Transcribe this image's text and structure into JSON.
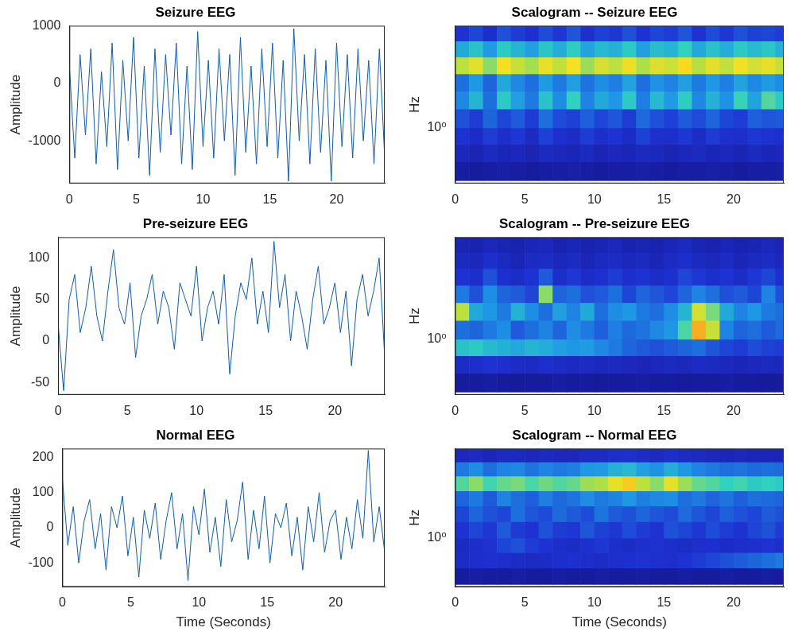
{
  "chart_data": [
    {
      "type": "line",
      "title": "Seizure EEG",
      "ylabel": "Amplitude",
      "color": "#0e5ea8",
      "grid": false,
      "xlim": [
        0,
        23.6
      ],
      "xticks": [
        0,
        5,
        10,
        15,
        20
      ],
      "ylim": [
        -1740,
        1000
      ],
      "yticks": [
        -1000,
        0,
        1000
      ],
      "x": [
        0,
        0.4,
        0.8,
        1.2,
        1.6,
        2,
        2.4,
        2.8,
        3.2,
        3.6,
        4,
        4.4,
        4.8,
        5.2,
        5.6,
        6,
        6.4,
        6.8,
        7.2,
        7.6,
        8,
        8.4,
        8.8,
        9.2,
        9.6,
        10,
        10.4,
        10.8,
        11.2,
        11.6,
        12,
        12.4,
        12.8,
        13.2,
        13.6,
        14,
        14.4,
        14.8,
        15.2,
        15.6,
        16,
        16.4,
        16.8,
        17.2,
        17.6,
        18,
        18.4,
        18.8,
        19.2,
        19.6,
        20,
        20.4,
        20.8,
        21.2,
        21.6,
        22,
        22.4,
        22.8,
        23.2,
        23.6
      ],
      "values": [
        300,
        -1300,
        500,
        -900,
        600,
        -1400,
        200,
        -1100,
        700,
        -1500,
        400,
        -1000,
        800,
        -1300,
        300,
        -1600,
        600,
        -1200,
        500,
        -900,
        700,
        -1400,
        300,
        -1500,
        900,
        -1100,
        400,
        -1300,
        600,
        -1000,
        500,
        -1600,
        800,
        -1200,
        300,
        -1400,
        600,
        -1100,
        700,
        -1300,
        400,
        -1700,
        950,
        -1000,
        500,
        -1400,
        600,
        -1200,
        400,
        -1700,
        700,
        -1100,
        500,
        -1300,
        600,
        -1000,
        400,
        -1400,
        600,
        -1300
      ]
    },
    {
      "type": "heatmap",
      "title": "Scalogram -- Seizure EEG",
      "ylabel": "Hz",
      "log": "y",
      "grid": false,
      "xlim": [
        0,
        23.6
      ],
      "xticks": [
        0,
        5,
        10,
        15,
        20
      ],
      "ylim": [
        0.32,
        9
      ],
      "yticks": [
        {
          "value": 1,
          "label": "10⁰"
        }
      ],
      "clim": [
        0,
        9
      ],
      "x_edges": [
        0,
        1,
        2,
        3,
        4,
        5,
        6,
        7,
        8,
        9,
        10,
        11,
        12,
        13,
        14,
        15,
        16,
        17,
        18,
        19,
        20,
        21,
        22,
        23,
        23.6
      ],
      "y_edges": [
        0.32,
        0.48,
        0.7,
        1.0,
        1.5,
        2.2,
        3.2,
        4.6,
        6.5,
        9
      ],
      "cells": [
        [
          0.6,
          0.5,
          0.6,
          0.7,
          0.6,
          0.5,
          0.6,
          0.6,
          0.7,
          0.6,
          0.5,
          0.6,
          0.6,
          0.7,
          0.6,
          0.5,
          0.6,
          0.6,
          0.7,
          0.6,
          0.5,
          0.6,
          0.6,
          0.7
        ],
        [
          1.2,
          1.0,
          1.3,
          1.1,
          1.2,
          1.0,
          1.3,
          1.2,
          1.1,
          1.3,
          1.0,
          1.2,
          1.1,
          1.3,
          1.2,
          1.0,
          1.2,
          1.3,
          1.1,
          1.2,
          1.0,
          1.3,
          1.1,
          1.2
        ],
        [
          1.8,
          1.5,
          2.0,
          1.6,
          1.9,
          1.4,
          2.1,
          1.7,
          1.5,
          2.0,
          1.6,
          1.8,
          1.5,
          2.1,
          1.7,
          1.6,
          1.9,
          1.5,
          2.0,
          1.7,
          1.6,
          1.9,
          1.8,
          1.7
        ],
        [
          2.4,
          2.0,
          2.8,
          2.2,
          2.6,
          2.0,
          3.0,
          2.3,
          2.1,
          2.7,
          2.2,
          2.5,
          2.0,
          2.9,
          2.4,
          2.1,
          2.6,
          2.3,
          2.8,
          2.2,
          2.0,
          2.7,
          2.5,
          2.6
        ],
        [
          3.5,
          4.5,
          3.0,
          5.0,
          4.0,
          3.2,
          4.8,
          3.6,
          5.2,
          3.4,
          4.2,
          3.8,
          5.0,
          3.3,
          4.6,
          3.9,
          5.1,
          3.5,
          4.4,
          3.7,
          5.3,
          4.1,
          5.6,
          5.0
        ],
        [
          3.0,
          3.8,
          2.8,
          4.2,
          3.5,
          3.0,
          3.9,
          3.2,
          4.0,
          3.1,
          3.6,
          3.3,
          4.1,
          3.0,
          3.7,
          3.4,
          4.0,
          3.2,
          3.8,
          3.3,
          4.1,
          3.5,
          3.9,
          3.6
        ],
        [
          6.8,
          7.5,
          6.2,
          7.8,
          7.0,
          6.5,
          7.6,
          6.9,
          7.9,
          6.4,
          7.3,
          6.8,
          7.7,
          6.6,
          7.4,
          7.1,
          8.0,
          6.7,
          7.5,
          6.9,
          7.8,
          7.2,
          7.6,
          7.0
        ],
        [
          4.2,
          4.8,
          3.9,
          5.0,
          4.5,
          4.0,
          4.9,
          4.3,
          5.1,
          4.1,
          4.6,
          4.4,
          5.0,
          4.0,
          4.7,
          4.5,
          5.2,
          4.2,
          4.8,
          4.3,
          5.0,
          4.6,
          4.9,
          4.4
        ],
        [
          1.8,
          2.2,
          1.6,
          2.4,
          2.0,
          1.7,
          2.3,
          1.9,
          2.5,
          1.7,
          2.1,
          1.9,
          2.4,
          1.8,
          2.2,
          2.0,
          2.5,
          1.8,
          2.3,
          1.9,
          2.4,
          2.1,
          2.2,
          2.0
        ]
      ]
    },
    {
      "type": "line",
      "title": "Pre-seizure EEG",
      "ylabel": "Amplitude",
      "color": "#0e5ea8",
      "grid": false,
      "xlim": [
        0,
        23.6
      ],
      "xticks": [
        0,
        5,
        10,
        15,
        20
      ],
      "ylim": [
        -65,
        125
      ],
      "yticks": [
        -50,
        0,
        50,
        100
      ],
      "x": [
        0,
        0.4,
        0.8,
        1.2,
        1.6,
        2,
        2.4,
        2.8,
        3.2,
        3.6,
        4,
        4.4,
        4.8,
        5.2,
        5.6,
        6,
        6.4,
        6.8,
        7.2,
        7.6,
        8,
        8.4,
        8.8,
        9.2,
        9.6,
        10,
        10.4,
        10.8,
        11.2,
        11.6,
        12,
        12.4,
        12.8,
        13.2,
        13.6,
        14,
        14.4,
        14.8,
        15.2,
        15.6,
        16,
        16.4,
        16.8,
        17.2,
        17.6,
        18,
        18.4,
        18.8,
        19.2,
        19.6,
        20,
        20.4,
        20.8,
        21.2,
        21.6,
        22,
        22.4,
        22.8,
        23.2,
        23.6
      ],
      "values": [
        20,
        -60,
        50,
        80,
        10,
        40,
        90,
        30,
        0,
        60,
        110,
        40,
        20,
        70,
        -20,
        30,
        50,
        80,
        20,
        60,
        40,
        -10,
        70,
        50,
        30,
        90,
        0,
        40,
        60,
        20,
        80,
        -40,
        30,
        70,
        50,
        100,
        20,
        60,
        10,
        120,
        40,
        80,
        0,
        60,
        30,
        -10,
        50,
        90,
        20,
        40,
        70,
        10,
        60,
        -30,
        50,
        80,
        30,
        60,
        100,
        -20
      ]
    },
    {
      "type": "heatmap",
      "title": "Scalogram -- Pre-seizure EEG",
      "ylabel": "Hz",
      "log": "y",
      "grid": false,
      "xlim": [
        0,
        23.6
      ],
      "xticks": [
        0,
        5,
        10,
        15,
        20
      ],
      "ylim": [
        0.32,
        9
      ],
      "yticks": [
        {
          "value": 1,
          "label": "10⁰"
        }
      ],
      "clim": [
        0,
        9
      ],
      "x_edges": [
        0,
        1,
        2,
        3,
        4,
        5,
        6,
        7,
        8,
        9,
        10,
        11,
        12,
        13,
        14,
        15,
        16,
        17,
        18,
        19,
        20,
        21,
        22,
        23,
        23.6
      ],
      "y_edges": [
        0.32,
        0.48,
        0.7,
        1.0,
        1.5,
        2.2,
        3.2,
        4.6,
        6.5,
        9
      ],
      "cells": [
        [
          0.5,
          0.5,
          0.6,
          0.5,
          0.4,
          0.5,
          0.5,
          0.6,
          0.5,
          0.5,
          0.4,
          0.5,
          0.5,
          0.6,
          0.5,
          0.5,
          0.4,
          0.5,
          0.5,
          0.6,
          0.5,
          0.5,
          0.4,
          0.5
        ],
        [
          1.5,
          1.6,
          1.8,
          1.7,
          1.5,
          1.4,
          1.6,
          1.5,
          1.3,
          1.4,
          1.2,
          1.3,
          1.2,
          1.1,
          1.2,
          1.3,
          1.2,
          1.4,
          1.3,
          1.2,
          1.1,
          1.2,
          1.3,
          1.2
        ],
        [
          4.8,
          5.0,
          4.6,
          4.4,
          4.2,
          4.5,
          4.3,
          4.0,
          3.8,
          3.9,
          3.5,
          3.2,
          2.8,
          2.6,
          2.4,
          2.6,
          2.8,
          3.0,
          2.5,
          2.2,
          2.0,
          2.3,
          2.1,
          2.0
        ],
        [
          3.0,
          2.8,
          3.2,
          3.6,
          2.6,
          3.0,
          3.4,
          2.8,
          3.6,
          3.2,
          2.7,
          3.3,
          2.9,
          3.1,
          3.5,
          3.8,
          5.5,
          8.6,
          7.0,
          3.4,
          2.8,
          3.0,
          2.6,
          2.9
        ],
        [
          6.8,
          4.2,
          3.8,
          3.2,
          4.4,
          3.6,
          3.0,
          4.0,
          3.4,
          4.2,
          3.0,
          3.6,
          3.8,
          3.2,
          3.0,
          3.6,
          4.5,
          7.2,
          6.0,
          4.2,
          3.4,
          3.8,
          3.2,
          3.0
        ],
        [
          3.2,
          2.4,
          3.6,
          2.8,
          2.6,
          2.2,
          6.2,
          2.8,
          3.0,
          2.4,
          2.6,
          3.0,
          2.2,
          2.8,
          2.5,
          2.2,
          2.8,
          3.4,
          3.0,
          2.4,
          2.6,
          2.2,
          3.4,
          2.4
        ],
        [
          1.8,
          1.6,
          2.4,
          1.7,
          1.5,
          1.8,
          2.6,
          1.6,
          1.9,
          1.5,
          1.7,
          2.0,
          1.6,
          1.8,
          1.5,
          1.7,
          2.2,
          1.9,
          1.6,
          1.8,
          1.5,
          1.9,
          2.2,
          1.7
        ],
        [
          1.3,
          1.2,
          1.6,
          1.3,
          1.1,
          1.4,
          1.5,
          1.2,
          1.4,
          1.1,
          1.3,
          1.5,
          1.2,
          1.3,
          1.1,
          1.4,
          1.6,
          1.3,
          1.2,
          1.4,
          1.1,
          1.3,
          1.5,
          1.2
        ],
        [
          1.0,
          0.9,
          1.2,
          1.0,
          0.9,
          1.1,
          1.2,
          0.9,
          1.1,
          0.9,
          1.0,
          1.2,
          0.9,
          1.0,
          0.9,
          1.1,
          1.3,
          1.0,
          0.9,
          1.1,
          0.9,
          1.0,
          1.2,
          1.0
        ]
      ]
    },
    {
      "type": "line",
      "title": "Normal EEG",
      "ylabel": "Amplitude",
      "xlabel": "Time (Seconds)",
      "color": "#0e5ea8",
      "grid": false,
      "xlim": [
        0,
        23.6
      ],
      "xticks": [
        0,
        5,
        10,
        15,
        20
      ],
      "ylim": [
        -168,
        225
      ],
      "yticks": [
        -100,
        0,
        100,
        200
      ],
      "x": [
        0,
        0.4,
        0.8,
        1.2,
        1.6,
        2,
        2.4,
        2.8,
        3.2,
        3.6,
        4,
        4.4,
        4.8,
        5.2,
        5.6,
        6,
        6.4,
        6.8,
        7.2,
        7.6,
        8,
        8.4,
        8.8,
        9.2,
        9.6,
        10,
        10.4,
        10.8,
        11.2,
        11.6,
        12,
        12.4,
        12.8,
        13.2,
        13.6,
        14,
        14.4,
        14.8,
        15.2,
        15.6,
        16,
        16.4,
        16.8,
        17.2,
        17.6,
        18,
        18.4,
        18.8,
        19.2,
        19.6,
        20,
        20.4,
        20.8,
        21.2,
        21.6,
        22,
        22.4,
        22.8,
        23.2,
        23.6
      ],
      "values": [
        140,
        -50,
        60,
        -100,
        20,
        80,
        -60,
        40,
        -120,
        60,
        0,
        90,
        -80,
        30,
        -140,
        50,
        -30,
        70,
        -90,
        20,
        100,
        -60,
        40,
        -150,
        60,
        -20,
        110,
        -70,
        30,
        -110,
        80,
        -40,
        20,
        130,
        -90,
        50,
        -60,
        90,
        -100,
        40,
        0,
        70,
        -80,
        30,
        -120,
        60,
        -40,
        100,
        -70,
        20,
        50,
        -90,
        30,
        -60,
        80,
        -30,
        220,
        -40,
        60,
        -70
      ]
    },
    {
      "type": "heatmap",
      "title": "Scalogram -- Normal EEG",
      "ylabel": "Hz",
      "xlabel": "Time (Seconds)",
      "log": "y",
      "grid": false,
      "xlim": [
        0,
        23.6
      ],
      "xticks": [
        0,
        5,
        10,
        15,
        20
      ],
      "ylim": [
        0.32,
        9
      ],
      "yticks": [
        {
          "value": 1,
          "label": "10⁰"
        }
      ],
      "clim": [
        0,
        9
      ],
      "x_edges": [
        0,
        1,
        2,
        3,
        4,
        5,
        6,
        7,
        8,
        9,
        10,
        11,
        12,
        13,
        14,
        15,
        16,
        17,
        18,
        19,
        20,
        21,
        22,
        23,
        23.6
      ],
      "y_edges": [
        0.32,
        0.48,
        0.7,
        1.0,
        1.5,
        2.2,
        3.2,
        4.6,
        6.5,
        9
      ],
      "cells": [
        [
          0.5,
          0.6,
          0.5,
          0.5,
          0.6,
          0.5,
          0.5,
          0.6,
          0.5,
          0.5,
          0.6,
          0.5,
          0.5,
          0.6,
          0.5,
          0.5,
          0.6,
          0.5,
          0.5,
          0.6,
          0.5,
          0.5,
          0.6,
          0.5
        ],
        [
          1.5,
          1.6,
          1.7,
          1.6,
          1.5,
          1.4,
          1.5,
          1.6,
          1.7,
          1.6,
          1.5,
          1.6,
          1.7,
          1.8,
          1.7,
          1.6,
          1.8,
          2.0,
          2.2,
          2.4,
          2.6,
          2.8,
          3.0,
          3.2
        ],
        [
          1.4,
          1.6,
          1.8,
          2.2,
          2.4,
          2.0,
          1.8,
          1.6,
          1.5,
          1.7,
          1.9,
          1.6,
          1.5,
          1.7,
          1.8,
          1.6,
          1.5,
          1.6,
          1.7,
          1.5,
          1.6,
          1.7,
          1.8,
          1.6
        ],
        [
          1.8,
          2.2,
          1.9,
          2.6,
          2.0,
          1.8,
          2.4,
          2.0,
          1.9,
          2.5,
          2.1,
          1.9,
          2.3,
          2.0,
          1.8,
          2.4,
          2.2,
          1.9,
          2.3,
          2.0,
          1.8,
          2.2,
          2.4,
          2.0
        ],
        [
          2.2,
          2.8,
          2.4,
          2.2,
          3.0,
          2.5,
          2.3,
          2.9,
          2.6,
          2.3,
          3.1,
          2.6,
          2.4,
          2.8,
          2.5,
          2.3,
          2.9,
          2.5,
          2.2,
          2.7,
          2.4,
          2.2,
          2.6,
          2.4
        ],
        [
          2.8,
          3.2,
          2.6,
          3.4,
          3.0,
          2.7,
          3.3,
          2.9,
          3.1,
          3.6,
          3.2,
          3.4,
          3.8,
          3.3,
          3.5,
          3.6,
          3.0,
          3.2,
          2.8,
          3.1,
          2.7,
          3.0,
          2.9,
          2.8
        ],
        [
          5.6,
          6.2,
          5.4,
          5.8,
          6.0,
          5.5,
          5.9,
          5.6,
          5.8,
          6.4,
          6.6,
          7.6,
          8.2,
          6.8,
          6.2,
          7.6,
          6.4,
          5.8,
          5.6,
          5.2,
          5.4,
          5.0,
          5.2,
          5.0
        ],
        [
          3.2,
          3.6,
          3.0,
          3.4,
          3.5,
          3.1,
          3.4,
          3.2,
          3.3,
          3.8,
          3.9,
          4.4,
          4.6,
          4.0,
          3.7,
          4.3,
          3.8,
          3.4,
          3.2,
          3.0,
          3.1,
          2.9,
          3.0,
          2.9
        ],
        [
          1.2,
          1.4,
          1.1,
          1.3,
          1.3,
          1.2,
          1.3,
          1.2,
          1.2,
          1.4,
          1.4,
          1.6,
          1.7,
          1.5,
          1.3,
          1.6,
          1.4,
          1.3,
          1.2,
          1.1,
          1.2,
          1.1,
          1.1,
          1.1
        ]
      ]
    }
  ]
}
